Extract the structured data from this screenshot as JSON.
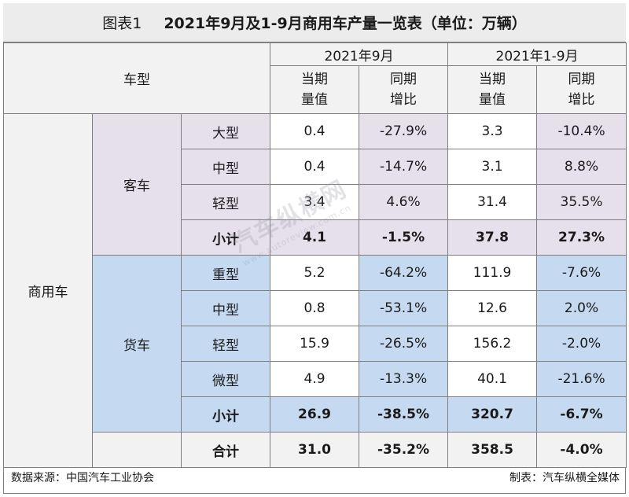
{
  "title": {
    "label": "图表1",
    "text": "2021年9月及1-9月商用车产量一览表（单位：万辆）"
  },
  "header": {
    "type_label": "车型",
    "period1": "2021年9月",
    "period2": "2021年1-9月",
    "col_value": "当期\n量值",
    "col_yoy": "同期\n增比"
  },
  "category": "商用车",
  "bus": {
    "label": "客车",
    "rows": [
      {
        "type": "大型",
        "v1": "0.4",
        "y1": "-27.9%",
        "v2": "3.3",
        "y2": "-10.4%"
      },
      {
        "type": "中型",
        "v1": "0.4",
        "y1": "-14.7%",
        "v2": "3.1",
        "y2": "8.8%"
      },
      {
        "type": "轻型",
        "v1": "3.4",
        "y1": "4.6%",
        "v2": "31.4",
        "y2": "35.5%"
      }
    ],
    "subtotal": {
      "label": "小计",
      "v1": "4.1",
      "y1": "-1.5%",
      "v2": "37.8",
      "y2": "27.3%"
    }
  },
  "truck": {
    "label": "货车",
    "rows": [
      {
        "type": "重型",
        "v1": "5.2",
        "y1": "-64.2%",
        "v2": "111.9",
        "y2": "-7.6%"
      },
      {
        "type": "中型",
        "v1": "0.8",
        "y1": "-53.1%",
        "v2": "12.6",
        "y2": "2.0%"
      },
      {
        "type": "轻型",
        "v1": "15.9",
        "y1": "-26.5%",
        "v2": "156.2",
        "y2": "-2.0%"
      },
      {
        "type": "微型",
        "v1": "4.9",
        "y1": "-13.3%",
        "v2": "40.1",
        "y2": "-21.6%"
      }
    ],
    "subtotal": {
      "label": "小计",
      "v1": "26.9",
      "y1": "-38.5%",
      "v2": "320.7",
      "y2": "-6.7%"
    }
  },
  "total": {
    "label": "合计",
    "v1": "31.0",
    "y1": "-35.2%",
    "v2": "358.5",
    "y2": "-4.0%"
  },
  "footer": {
    "source": "数据来源：中国汽车工业协会",
    "maker": "制表：汽车纵横全媒体"
  },
  "watermark": {
    "brand": "汽车纵横网",
    "url": "www.autoreview.com.cn"
  },
  "colors": {
    "bus_fill": "#e6e0ec",
    "truck_fill": "#c5d9f1",
    "header_fill": "#f2f2f2",
    "title_fill": "#ececec"
  }
}
